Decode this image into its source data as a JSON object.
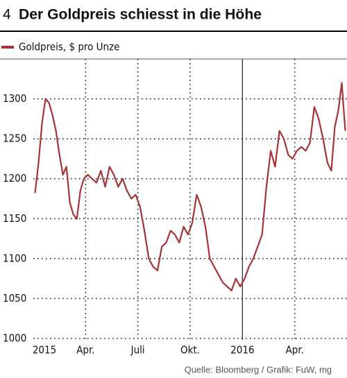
{
  "chart_data": {
    "type": "line",
    "number": "4",
    "title": "Der Goldpreis schiesst in die Höhe",
    "source": "Quelle: Bloomberg / Grafik: FuW, mg",
    "x": [
      "2015-01",
      "2015-01",
      "2015-01",
      "2015-01",
      "2015-01",
      "2015-02",
      "2015-02",
      "2015-02",
      "2015-02",
      "2015-02",
      "2015-03",
      "2015-03",
      "2015-03",
      "2015-03",
      "2015-03",
      "2015-04",
      "2015-04",
      "2015-04",
      "2015-04",
      "2015-05",
      "2015-05",
      "2015-05",
      "2015-05",
      "2015-06",
      "2015-06",
      "2015-06",
      "2015-06",
      "2015-07",
      "2015-07",
      "2015-07",
      "2015-07",
      "2015-08",
      "2015-08",
      "2015-08",
      "2015-08",
      "2015-09",
      "2015-09",
      "2015-09",
      "2015-09",
      "2015-10",
      "2015-10",
      "2015-10",
      "2015-10",
      "2015-11",
      "2015-11",
      "2015-11",
      "2015-11",
      "2015-12",
      "2015-12",
      "2015-12",
      "2015-12",
      "2016-01",
      "2016-01",
      "2016-01",
      "2016-01",
      "2016-02",
      "2016-02",
      "2016-02",
      "2016-02",
      "2016-03",
      "2016-03",
      "2016-03",
      "2016-03",
      "2016-04",
      "2016-04",
      "2016-04",
      "2016-04",
      "2016-05",
      "2016-05",
      "2016-05",
      "2016-05",
      "2016-06",
      "2016-06",
      "2016-06",
      "2016-06",
      "2016-06"
    ],
    "series": [
      {
        "name": "Goldpreis, $ pro Unze",
        "color": "#a63236",
        "values": [
          1182,
          1220,
          1270,
          1300,
          1295,
          1280,
          1260,
          1230,
          1205,
          1215,
          1170,
          1155,
          1150,
          1185,
          1200,
          1205,
          1200,
          1195,
          1210,
          1190,
          1215,
          1205,
          1190,
          1200,
          1185,
          1175,
          1180,
          1165,
          1135,
          1100,
          1090,
          1085,
          1115,
          1120,
          1135,
          1130,
          1120,
          1140,
          1130,
          1145,
          1180,
          1165,
          1140,
          1100,
          1090,
          1080,
          1070,
          1065,
          1060,
          1075,
          1065,
          1075,
          1090,
          1100,
          1115,
          1130,
          1190,
          1235,
          1215,
          1260,
          1250,
          1230,
          1225,
          1235,
          1240,
          1235,
          1245,
          1290,
          1275,
          1250,
          1220,
          1210,
          1265,
          1285,
          1320,
          1260
        ]
      }
    ],
    "xlim": [
      "2015-01",
      "2016-07"
    ],
    "xticks": [
      {
        "value": "2015-01",
        "label": "2015"
      },
      {
        "value": "2015-04",
        "label": "Apr."
      },
      {
        "value": "2015-07",
        "label": "Juli"
      },
      {
        "value": "2015-10",
        "label": "Okt."
      },
      {
        "value": "2016-01",
        "label": "2016"
      },
      {
        "value": "2016-04",
        "label": "Apr."
      }
    ],
    "ylim": [
      1000,
      1350
    ],
    "yticks": [
      1000,
      1050,
      1100,
      1150,
      1200,
      1250,
      1300
    ],
    "grid": true
  }
}
